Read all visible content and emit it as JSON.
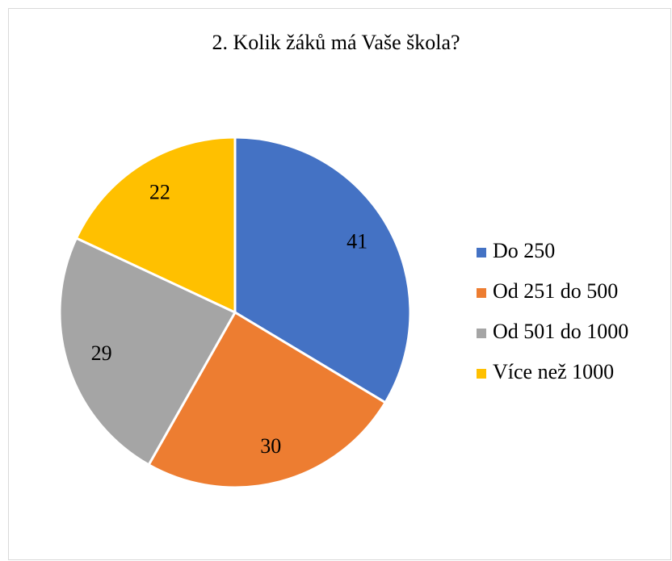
{
  "chart_data": {
    "type": "pie",
    "title": "2. Kolik žáků má Vaše škola?",
    "categories": [
      "Do 250",
      "Od 251 do 500",
      "Od 501 do 1000",
      "Více než 1000"
    ],
    "values": [
      41,
      30,
      29,
      22
    ],
    "colors": [
      "#4472c4",
      "#ed7d31",
      "#a5a5a5",
      "#ffc000"
    ],
    "legend": "right"
  }
}
